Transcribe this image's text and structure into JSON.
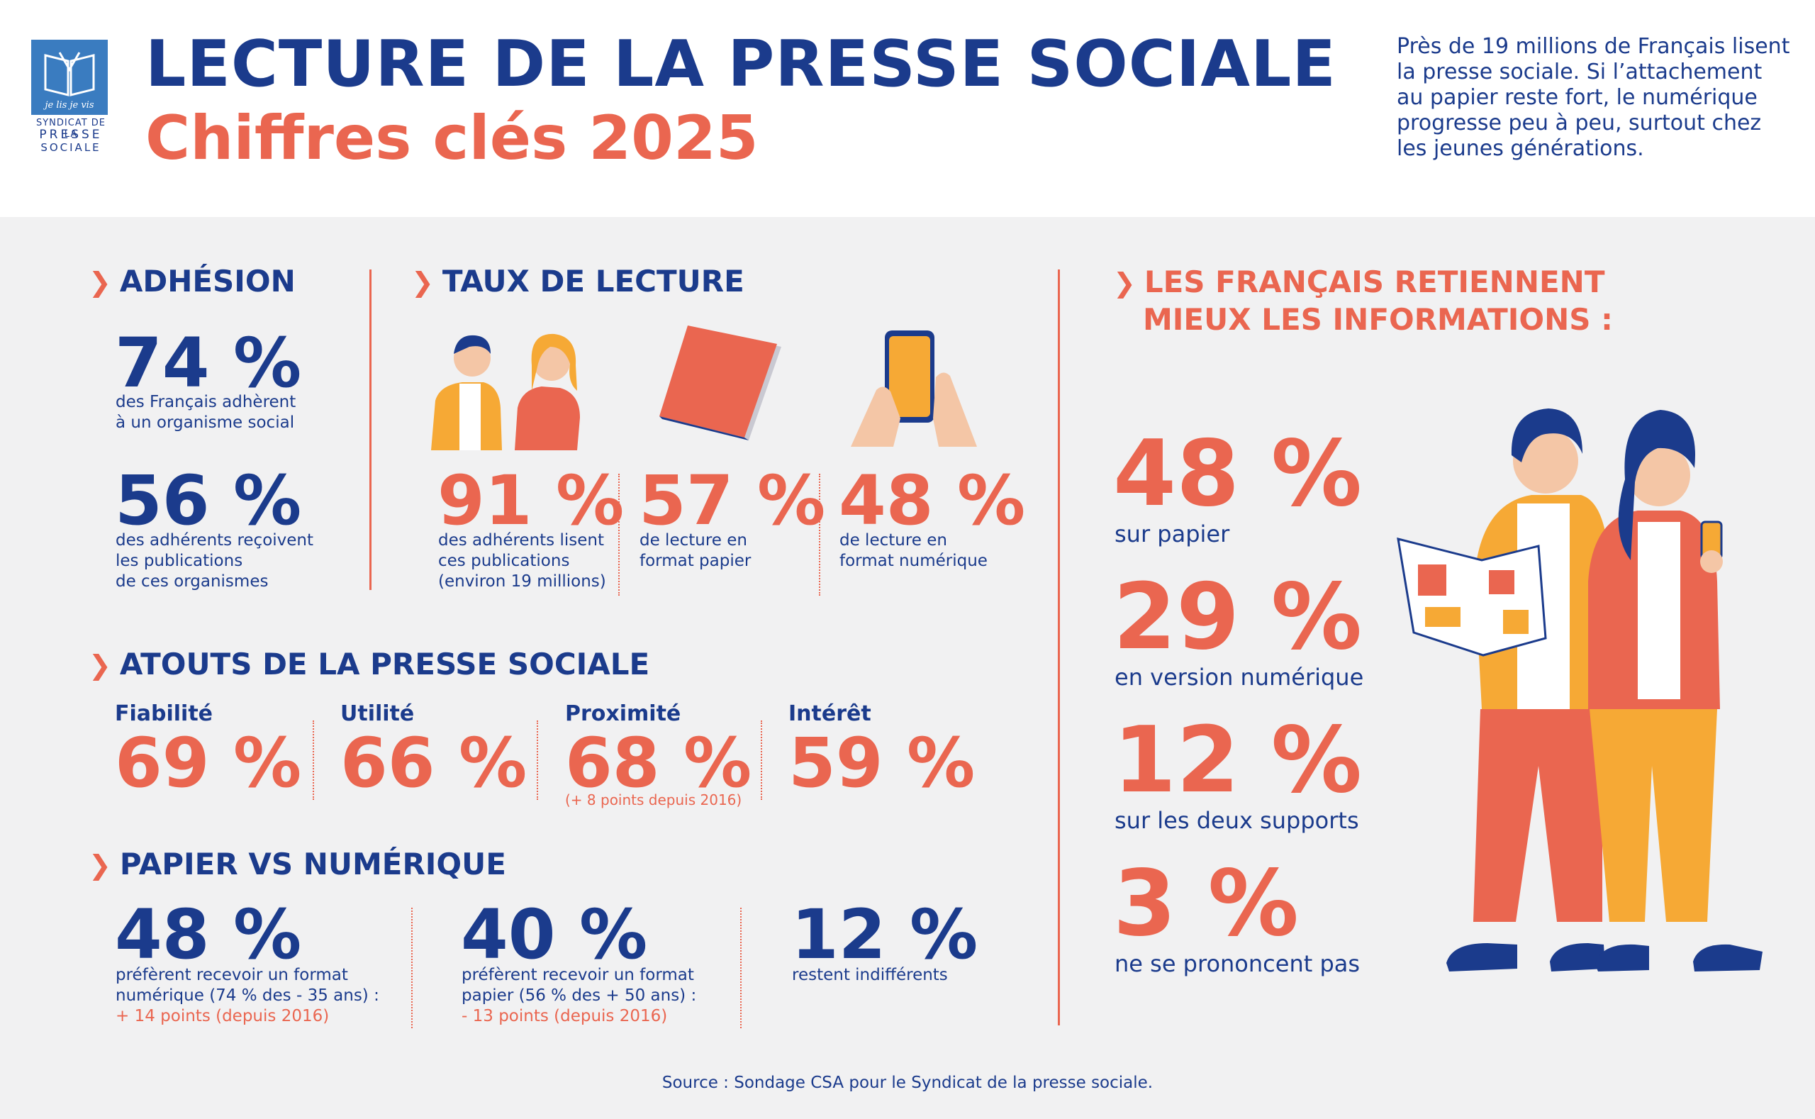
{
  "header": {
    "title": "LECTURE DE LA PRESSE SOCIALE",
    "subtitle": "Chiffres clés 2025",
    "intro": "Près de 19 millions de Français lisent la presse sociale. Si l’attachement au papier reste fort, le numérique progresse peu à peu, surtout chez les jeunes générations.",
    "logo_lines": [
      "SYNDICAT DE LA",
      "PRESSE",
      "SOCIALE"
    ],
    "logo_script": "je lis je vis"
  },
  "adhesion": {
    "title": "ADHÉSION",
    "stats": [
      {
        "value": "74 %",
        "desc": [
          "des Français adhèrent",
          "à un organisme social"
        ]
      },
      {
        "value": "56 %",
        "desc": [
          "des adhérents reçoivent",
          "les publications",
          "de ces organismes"
        ]
      }
    ]
  },
  "taux_lecture": {
    "title": "TAUX DE LECTURE",
    "stats": [
      {
        "value": "91 %",
        "desc": [
          "des adhérents lisent",
          "ces publications",
          "(environ 19 millions)"
        ]
      },
      {
        "value": "57 %",
        "desc": [
          "de lecture en",
          "format papier"
        ]
      },
      {
        "value": "48 %",
        "desc": [
          "de lecture en",
          "format numérique"
        ]
      }
    ]
  },
  "atouts": {
    "title": "ATOUTS DE LA PRESSE SOCIALE",
    "items": [
      {
        "label": "Fiabilité",
        "value": "69 %"
      },
      {
        "label": "Utilité",
        "value": "66 %"
      },
      {
        "label": "Proximité",
        "value": "68 %",
        "note": "(+ 8 points depuis 2016)"
      },
      {
        "label": "Intérêt",
        "value": "59 %"
      }
    ]
  },
  "papier_vs_numerique": {
    "title": "PAPIER VS NUMÉRIQUE",
    "stats": [
      {
        "value": "48 %",
        "desc": [
          "préfèrent recevoir un format",
          "numérique (74 % des - 35 ans) :"
        ],
        "note": "+ 14 points (depuis 2016)"
      },
      {
        "value": "40 %",
        "desc": [
          "préfèrent recevoir un format",
          "papier (56 % des + 50 ans) :"
        ],
        "note": "- 13 points (depuis 2016)"
      },
      {
        "value": "12 %",
        "desc": [
          "restent indifférents"
        ]
      }
    ]
  },
  "retention": {
    "title_lines": [
      "LES FRANÇAIS RETIENNENT",
      "MIEUX LES INFORMATIONS :"
    ],
    "stats": [
      {
        "value": "48 %",
        "desc": "sur papier"
      },
      {
        "value": "29 %",
        "desc": "en version numérique"
      },
      {
        "value": "12 %",
        "desc": "sur les deux supports"
      },
      {
        "value": "3 %",
        "desc": "ne se prononcent pas"
      }
    ]
  },
  "source": "Source : Sondage CSA pour le Syndicat de la presse sociale.",
  "colors": {
    "navy": "#1b3b8c",
    "coral": "#ea6650",
    "orange": "#f6a935",
    "background": "#f1f1f2"
  }
}
